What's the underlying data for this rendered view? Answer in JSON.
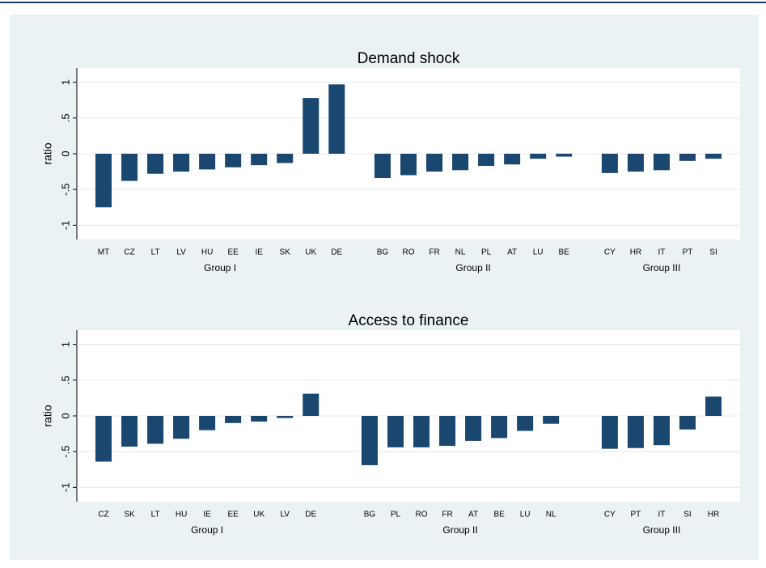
{
  "chart_data": [
    {
      "type": "bar",
      "title": "Demand shock",
      "y_label": "ratio",
      "color": "#1a476f",
      "grid": true,
      "ylim": [
        -1.2,
        1.2
      ],
      "yticks": [
        -1,
        {
          "value": -0.5,
          "label": "-.5"
        },
        0,
        {
          "value": 0.5,
          "label": ".5"
        },
        1
      ],
      "groups": [
        {
          "name": "Group I",
          "categories": [
            "MT",
            "CZ",
            "LT",
            "LV",
            "HU",
            "EE",
            "IE",
            "SK",
            "UK",
            "DE"
          ],
          "values": [
            -0.75,
            -0.38,
            -0.28,
            -0.25,
            -0.22,
            -0.19,
            -0.16,
            -0.13,
            0.78,
            0.97
          ]
        },
        {
          "name": "Group II",
          "categories": [
            "BG",
            "RO",
            "FR",
            "NL",
            "PL",
            "AT",
            "LU",
            "BE"
          ],
          "values": [
            -0.34,
            -0.3,
            -0.25,
            -0.23,
            -0.17,
            -0.15,
            -0.07,
            -0.04
          ]
        },
        {
          "name": "Group III",
          "categories": [
            "CY",
            "HR",
            "IT",
            "PT",
            "SI"
          ],
          "values": [
            -0.27,
            -0.25,
            -0.23,
            -0.1,
            -0.07
          ]
        }
      ]
    },
    {
      "type": "bar",
      "title": "Access to finance",
      "y_label": "ratio",
      "color": "#1a476f",
      "grid": true,
      "ylim": [
        -1.2,
        1.2
      ],
      "yticks": [
        -1,
        {
          "value": -0.5,
          "label": "-.5"
        },
        0,
        {
          "value": 0.5,
          "label": ".5"
        },
        1
      ],
      "groups": [
        {
          "name": "Group I",
          "categories": [
            "CZ",
            "SK",
            "LT",
            "HU",
            "IE",
            "EE",
            "UK",
            "LV",
            "DE"
          ],
          "values": [
            -0.64,
            -0.43,
            -0.39,
            -0.32,
            -0.2,
            -0.1,
            -0.08,
            -0.03,
            0.31
          ]
        },
        {
          "name": "Group II",
          "categories": [
            "BG",
            "PL",
            "RO",
            "FR",
            "AT",
            "BE",
            "LU",
            "NL"
          ],
          "values": [
            -0.69,
            -0.44,
            -0.44,
            -0.42,
            -0.35,
            -0.31,
            -0.21,
            -0.11
          ]
        },
        {
          "name": "Group III",
          "categories": [
            "CY",
            "PT",
            "IT",
            "SI",
            "HR"
          ],
          "values": [
            -0.46,
            -0.45,
            -0.41,
            -0.19,
            0.27
          ]
        }
      ]
    }
  ]
}
